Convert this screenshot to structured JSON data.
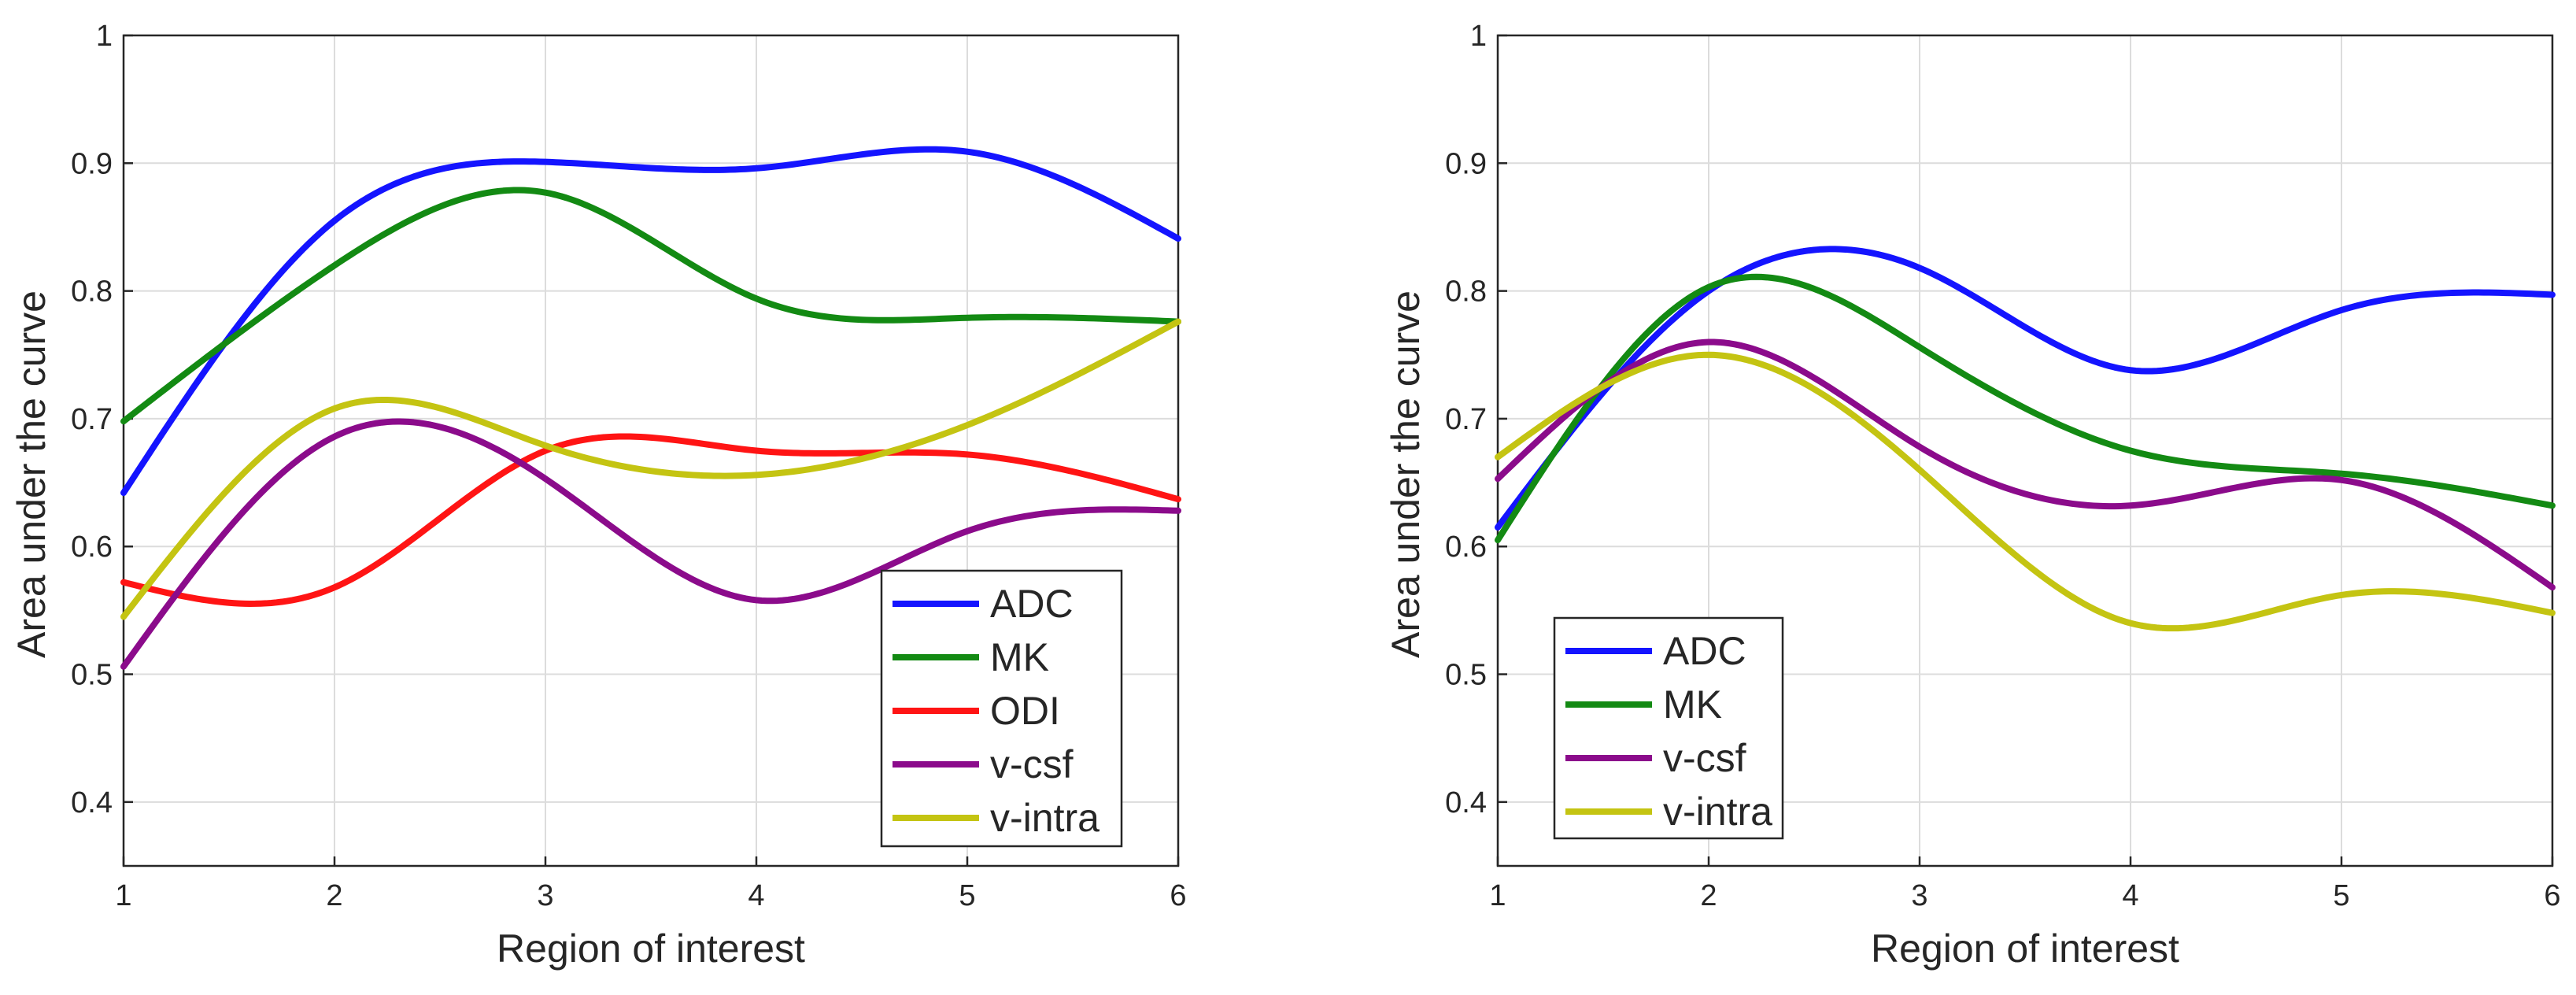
{
  "colors": {
    "ADC": "#1414ff",
    "MK": "#138a13",
    "ODI": "#ff1414",
    "v-csf": "#8b0b8b",
    "v-intra": "#c4c412"
  },
  "chart_data": [
    {
      "type": "line",
      "title": "",
      "xlabel": "Region of interest",
      "ylabel": "Area under the curve",
      "xlim": [
        1,
        6
      ],
      "ylim": [
        0.35,
        1
      ],
      "xticks": [
        1,
        2,
        3,
        4,
        5,
        6
      ],
      "yticks": [
        0.4,
        0.5,
        0.6,
        0.7,
        0.8,
        0.9,
        1
      ],
      "ytick_labels": [
        "0.4",
        "0.5",
        "0.6",
        "0.7",
        "0.8",
        "0.9",
        "1"
      ],
      "grid": true,
      "legend_position": "bottom-right",
      "series": [
        {
          "name": "ADC",
          "x": [
            1,
            2,
            3,
            4,
            5,
            6
          ],
          "y": [
            0.642,
            0.855,
            0.901,
            0.896,
            0.909,
            0.841
          ]
        },
        {
          "name": "MK",
          "x": [
            1,
            2,
            3,
            4,
            5,
            6
          ],
          "y": [
            0.698,
            0.82,
            0.877,
            0.794,
            0.779,
            0.776
          ]
        },
        {
          "name": "ODI",
          "x": [
            1,
            2,
            3,
            4,
            5,
            6
          ],
          "y": [
            0.572,
            0.568,
            0.675,
            0.675,
            0.672,
            0.637
          ]
        },
        {
          "name": "v-csf",
          "x": [
            1,
            2,
            3,
            4,
            5,
            6
          ],
          "y": [
            0.506,
            0.686,
            0.653,
            0.558,
            0.612,
            0.628
          ]
        },
        {
          "name": "v-intra",
          "x": [
            1,
            2,
            3,
            4,
            5,
            6
          ],
          "y": [
            0.545,
            0.708,
            0.679,
            0.656,
            0.695,
            0.776
          ]
        }
      ]
    },
    {
      "type": "line",
      "title": "",
      "xlabel": "Region of interest",
      "ylabel": "Area under the curve",
      "xlim": [
        1,
        6
      ],
      "ylim": [
        0.35,
        1
      ],
      "xticks": [
        1,
        2,
        3,
        4,
        5,
        6
      ],
      "yticks": [
        0.4,
        0.5,
        0.6,
        0.7,
        0.8,
        0.9,
        1
      ],
      "ytick_labels": [
        "0.4",
        "0.5",
        "0.6",
        "0.7",
        "0.8",
        "0.9",
        "1"
      ],
      "grid": true,
      "legend_position": "bottom-left",
      "series": [
        {
          "name": "ADC",
          "x": [
            1,
            2,
            3,
            4,
            5,
            6
          ],
          "y": [
            0.615,
            0.8,
            0.818,
            0.738,
            0.785,
            0.797
          ]
        },
        {
          "name": "MK",
          "x": [
            1,
            2,
            3,
            4,
            5,
            6
          ],
          "y": [
            0.605,
            0.803,
            0.756,
            0.675,
            0.657,
            0.632
          ]
        },
        {
          "name": "v-csf",
          "x": [
            1,
            2,
            3,
            4,
            5,
            6
          ],
          "y": [
            0.653,
            0.76,
            0.678,
            0.632,
            0.652,
            0.568
          ]
        },
        {
          "name": "v-intra",
          "x": [
            1,
            2,
            3,
            4,
            5,
            6
          ],
          "y": [
            0.67,
            0.75,
            0.66,
            0.54,
            0.562,
            0.548
          ]
        }
      ]
    }
  ]
}
